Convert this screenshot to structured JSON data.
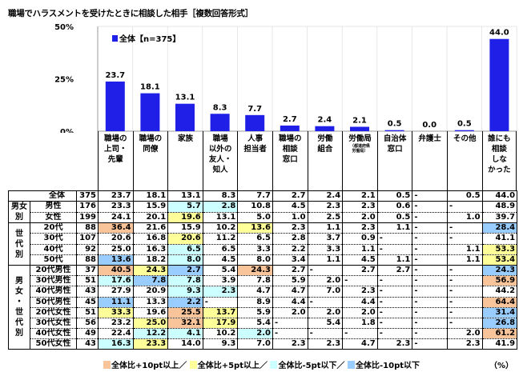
{
  "title": "職場でハラスメントを受けたときに相談した相手［複数回答形式］",
  "colors": {
    "bar": "#1f1fe8",
    "plus10": "#f9c49a",
    "plus5": "#ffff99",
    "minus5": "#ccffff",
    "minus10": "#99ccff"
  },
  "chart_data": {
    "type": "bar",
    "title": "職場でハラスメントを受けたときに相談した相手［複数回答形式］",
    "categories": [
      "職場の\n上司・\n先輩",
      "職場の\n同僚",
      "家族",
      "職場\n以外の\n友人・\n知人",
      "人事\n担当者",
      "職場の\n相談\n窓口",
      "労働\n組合",
      "労働局",
      "自治体\n窓口",
      "弁護士",
      "その他",
      "誰にも\n相談\nしな\nかった"
    ],
    "category_sub": {
      "7": "（都道府県\n労働局）"
    },
    "series": [
      {
        "name": "全体【n=375】",
        "values": [
          23.7,
          18.1,
          13.1,
          8.3,
          7.7,
          2.7,
          2.4,
          2.1,
          0.5,
          0.0,
          0.5,
          44.0
        ]
      }
    ],
    "value_labels": [
      "23.7",
      "18.1",
      "13.1",
      "8.3",
      "7.7",
      "2.7",
      "2.4",
      "2.1",
      "0.5",
      "0.0",
      "0.5",
      "44.0"
    ],
    "yticks": [
      "0%",
      "25%",
      "50%"
    ],
    "ylim": [
      0,
      50
    ],
    "legend": "top-left",
    "grid": "vertical category lines"
  },
  "table": {
    "groups": [
      {
        "label": "",
        "rows": 1
      },
      {
        "label": "男女\n別",
        "rows": 2
      },
      {
        "label": "世\n代\n別",
        "rows": 4
      },
      {
        "label": "男\n女\n・\n世\n代\n別",
        "rows": 8
      }
    ],
    "rows": [
      {
        "label": "全体",
        "n": "375",
        "v": [
          "23.7",
          "18.1",
          "13.1",
          "8.3",
          "7.7",
          "2.7",
          "2.4",
          "2.1",
          "0.5",
          "-",
          "0.5",
          "44.0"
        ],
        "h": [
          "",
          "",
          "",
          "",
          "",
          "",
          "",
          "",
          "",
          "",
          "",
          ""
        ]
      },
      {
        "label": "男性",
        "n": "176",
        "v": [
          "23.3",
          "15.9",
          "5.7",
          "2.8",
          "10.8",
          "4.5",
          "2.3",
          "2.3",
          "0.6",
          "-",
          "-",
          "48.9"
        ],
        "h": [
          "",
          "",
          "c",
          "c",
          "",
          "",
          "",
          "",
          "",
          "",
          "",
          ""
        ]
      },
      {
        "label": "女性",
        "n": "199",
        "v": [
          "24.1",
          "20.1",
          "19.6",
          "13.1",
          "5.0",
          "1.0",
          "2.5",
          "2.0",
          "0.5",
          "-",
          "1.0",
          "39.7"
        ],
        "h": [
          "",
          "",
          "y",
          "",
          "",
          "",
          "",
          "",
          "",
          "",
          "",
          ""
        ]
      },
      {
        "label": "20代",
        "n": "88",
        "v": [
          "36.4",
          "21.6",
          "15.9",
          "10.2",
          "13.6",
          "2.3",
          "1.1",
          "2.3",
          "1.1",
          "-",
          "-",
          "28.4"
        ],
        "h": [
          "o",
          "",
          "",
          "",
          "y",
          "",
          "",
          "",
          "",
          "",
          "",
          "b"
        ]
      },
      {
        "label": "30代",
        "n": "107",
        "v": [
          "20.6",
          "16.8",
          "20.6",
          "11.2",
          "6.5",
          "2.8",
          "3.7",
          "0.9",
          "-",
          "-",
          "-",
          "41.1"
        ],
        "h": [
          "",
          "",
          "y",
          "",
          "",
          "",
          "",
          "",
          "",
          "",
          "",
          ""
        ]
      },
      {
        "label": "40代",
        "n": "92",
        "v": [
          "25.0",
          "16.3",
          "6.5",
          "6.5",
          "3.3",
          "2.2",
          "3.3",
          "1.1",
          "-",
          "-",
          "1.1",
          "53.3"
        ],
        "h": [
          "",
          "",
          "c",
          "",
          "",
          "",
          "",
          "",
          "",
          "",
          "",
          "y"
        ]
      },
      {
        "label": "50代",
        "n": "88",
        "v": [
          "13.6",
          "18.2",
          "8.0",
          "4.5",
          "8.0",
          "3.4",
          "1.1",
          "4.5",
          "1.1",
          "-",
          "1.1",
          "53.4"
        ],
        "h": [
          "b",
          "",
          "c",
          "",
          "",
          "",
          "",
          "",
          "",
          "",
          "",
          "y"
        ]
      },
      {
        "label": "20代男性",
        "n": "37",
        "v": [
          "40.5",
          "24.3",
          "2.7",
          "5.4",
          "24.3",
          "2.7",
          "-",
          "2.7",
          "2.7",
          "-",
          "-",
          "24.3"
        ],
        "h": [
          "o",
          "y",
          "b",
          "",
          "o",
          "",
          "",
          "",
          "",
          "",
          "",
          "b"
        ]
      },
      {
        "label": "30代男性",
        "n": "51",
        "v": [
          "17.6",
          "7.8",
          "7.8",
          "3.9",
          "7.8",
          "5.9",
          "2.0",
          "-",
          "-",
          "-",
          "-",
          "56.9"
        ],
        "h": [
          "c",
          "b",
          "c",
          "",
          "",
          "",
          "",
          "",
          "",
          "",
          "",
          "o"
        ]
      },
      {
        "label": "40代男性",
        "n": "43",
        "v": [
          "27.9",
          "20.9",
          "9.3",
          "2.3",
          "4.7",
          "4.7",
          "7.0",
          "2.3",
          "-",
          "-",
          "-",
          "44.2"
        ],
        "h": [
          "",
          "",
          "c",
          "c",
          "",
          "",
          "",
          "",
          "",
          "",
          "",
          ""
        ]
      },
      {
        "label": "50代男性",
        "n": "45",
        "v": [
          "11.1",
          "13.3",
          "2.2",
          "-",
          "8.9",
          "4.4",
          "-",
          "4.4",
          "-",
          "-",
          "-",
          "64.4"
        ],
        "h": [
          "b",
          "",
          "b",
          "",
          "",
          "",
          "",
          "",
          "",
          "",
          "",
          "o"
        ]
      },
      {
        "label": "20代女性",
        "n": "51",
        "v": [
          "33.3",
          "19.6",
          "25.5",
          "13.7",
          "5.9",
          "2.0",
          "2.0",
          "2.0",
          "-",
          "-",
          "-",
          "31.4"
        ],
        "h": [
          "y",
          "",
          "o",
          "y",
          "",
          "",
          "",
          "",
          "",
          "",
          "",
          "b"
        ]
      },
      {
        "label": "30代女性",
        "n": "56",
        "v": [
          "23.2",
          "25.0",
          "32.1",
          "17.9",
          "5.4",
          "-",
          "5.4",
          "1.8",
          "-",
          "-",
          "-",
          "26.8"
        ],
        "h": [
          "",
          "y",
          "o",
          "y",
          "",
          "",
          "",
          "",
          "",
          "",
          "",
          "b"
        ]
      },
      {
        "label": "40代女性",
        "n": "49",
        "v": [
          "22.4",
          "12.2",
          "4.1",
          "10.2",
          "2.0",
          "-",
          "-",
          "-",
          "-",
          "-",
          "2.0",
          "61.2"
        ],
        "h": [
          "",
          "c",
          "c",
          "",
          "c",
          "",
          "",
          "",
          "",
          "",
          "",
          "o"
        ]
      },
      {
        "label": "50代女性",
        "n": "43",
        "v": [
          "16.3",
          "23.3",
          "14.0",
          "9.3",
          "7.0",
          "2.3",
          "2.3",
          "4.7",
          "2.3",
          "-",
          "2.3",
          "41.9"
        ],
        "h": [
          "c",
          "y",
          "",
          "",
          "",
          "",
          "",
          "",
          "",
          "",
          "",
          ""
        ]
      }
    ]
  },
  "legend": {
    "plus10": "全体比+10pt以上／",
    "plus5": "全体比+5pt以上／",
    "minus5": "全体比-5pt以下／",
    "minus10": "全体比-10pt以下"
  },
  "unit": "（%）"
}
